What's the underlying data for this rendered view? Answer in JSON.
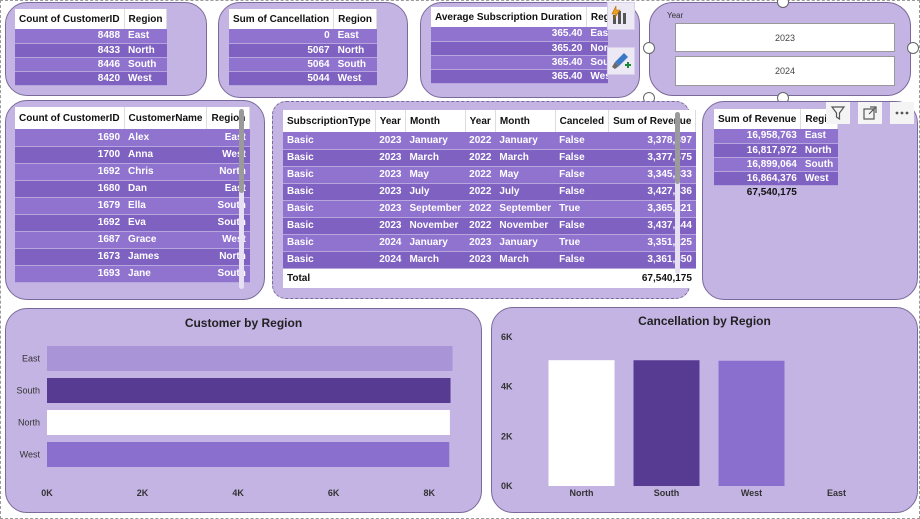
{
  "customer_count_table": {
    "headers": [
      "Count of CustomerID",
      "Region"
    ],
    "rows": [
      [
        "8488",
        "East"
      ],
      [
        "8433",
        "North"
      ],
      [
        "8446",
        "South"
      ],
      [
        "8420",
        "West"
      ]
    ]
  },
  "cancellation_table": {
    "headers": [
      "Sum of Cancellation",
      "Region"
    ],
    "rows": [
      [
        "0",
        "East"
      ],
      [
        "5067",
        "North"
      ],
      [
        "5064",
        "South"
      ],
      [
        "5044",
        "West"
      ]
    ]
  },
  "duration_table": {
    "headers": [
      "Average Subscription Duration",
      "Regio"
    ],
    "rows": [
      [
        "365.40",
        "East"
      ],
      [
        "365.20",
        "North"
      ],
      [
        "365.40",
        "South"
      ],
      [
        "365.40",
        "West"
      ]
    ]
  },
  "year_slicer": {
    "label": "Year",
    "options": [
      "2023",
      "2024"
    ]
  },
  "customer_names_table": {
    "headers": [
      "Count of CustomerID",
      "CustomerName",
      "Region"
    ],
    "rows": [
      [
        "1690",
        "Alex",
        "East"
      ],
      [
        "1700",
        "Anna",
        "West"
      ],
      [
        "1692",
        "Chris",
        "North"
      ],
      [
        "1680",
        "Dan",
        "East"
      ],
      [
        "1679",
        "Ella",
        "South"
      ],
      [
        "1692",
        "Eva",
        "South"
      ],
      [
        "1687",
        "Grace",
        "West"
      ],
      [
        "1673",
        "James",
        "North"
      ],
      [
        "1693",
        "Jane",
        "South"
      ]
    ]
  },
  "subscription_table": {
    "headers": [
      "SubscriptionType",
      "Year",
      "Month",
      "Year",
      "Month",
      "Canceled",
      "Sum of Revenue"
    ],
    "rows": [
      [
        "Basic",
        "2023",
        "January",
        "2022",
        "January",
        "False",
        "3,378,897"
      ],
      [
        "Basic",
        "2023",
        "March",
        "2022",
        "March",
        "False",
        "3,377,675"
      ],
      [
        "Basic",
        "2023",
        "May",
        "2022",
        "May",
        "False",
        "3,345,833"
      ],
      [
        "Basic",
        "2023",
        "July",
        "2022",
        "July",
        "False",
        "3,427,436"
      ],
      [
        "Basic",
        "2023",
        "September",
        "2022",
        "September",
        "True",
        "3,365,221"
      ],
      [
        "Basic",
        "2023",
        "November",
        "2022",
        "November",
        "False",
        "3,437,444"
      ],
      [
        "Basic",
        "2024",
        "January",
        "2023",
        "January",
        "True",
        "3,351,225"
      ],
      [
        "Basic",
        "2024",
        "March",
        "2023",
        "March",
        "False",
        "3,361,350"
      ]
    ],
    "total_label": "Total",
    "total_value": "67,540,175"
  },
  "revenue_table": {
    "headers": [
      "Sum of Revenue",
      "Regio"
    ],
    "rows": [
      [
        "16,958,763",
        "East"
      ],
      [
        "16,817,972",
        "North"
      ],
      [
        "16,899,064",
        "South"
      ],
      [
        "16,864,376",
        "West"
      ]
    ],
    "total": "67,540,175"
  },
  "toolbar": {
    "icons": [
      "lightning-chart-icon",
      "format-brush-icon"
    ]
  },
  "visual_header": {
    "icons": [
      "filter-icon",
      "focus-mode-icon",
      "more-options-icon"
    ]
  },
  "colors": {
    "card_bg": "#c4b4e4",
    "bar_light": "#a994d8",
    "bar_dark": "#573b93",
    "bar_white": "#ffffff",
    "bar_mid": "#8b6fcf"
  },
  "chart_data": [
    {
      "type": "bar",
      "orientation": "horizontal",
      "title": "Customer by Region",
      "categories": [
        "East",
        "South",
        "North",
        "West"
      ],
      "values": [
        8488,
        8446,
        8433,
        8420
      ],
      "colors": [
        "#a994d8",
        "#573b93",
        "#ffffff",
        "#8b6fcf"
      ],
      "xlim": [
        0,
        9000
      ],
      "ticks": [
        "0K",
        "2K",
        "4K",
        "6K",
        "8K"
      ],
      "tick_values": [
        0,
        2000,
        4000,
        6000,
        8000
      ],
      "xlabel": "",
      "ylabel": "",
      "grid": false
    },
    {
      "type": "bar",
      "orientation": "vertical",
      "title": "Cancellation by Region",
      "categories": [
        "North",
        "South",
        "West",
        "East"
      ],
      "values": [
        5067,
        5064,
        5044,
        0
      ],
      "colors": [
        "#ffffff",
        "#573b93",
        "#8b6fcf",
        "#a994d8"
      ],
      "ylim": [
        0,
        6000
      ],
      "ticks": [
        "0K",
        "2K",
        "4K",
        "6K"
      ],
      "tick_values": [
        0,
        2000,
        4000,
        6000
      ],
      "xlabel": "",
      "ylabel": "",
      "grid": false
    }
  ]
}
